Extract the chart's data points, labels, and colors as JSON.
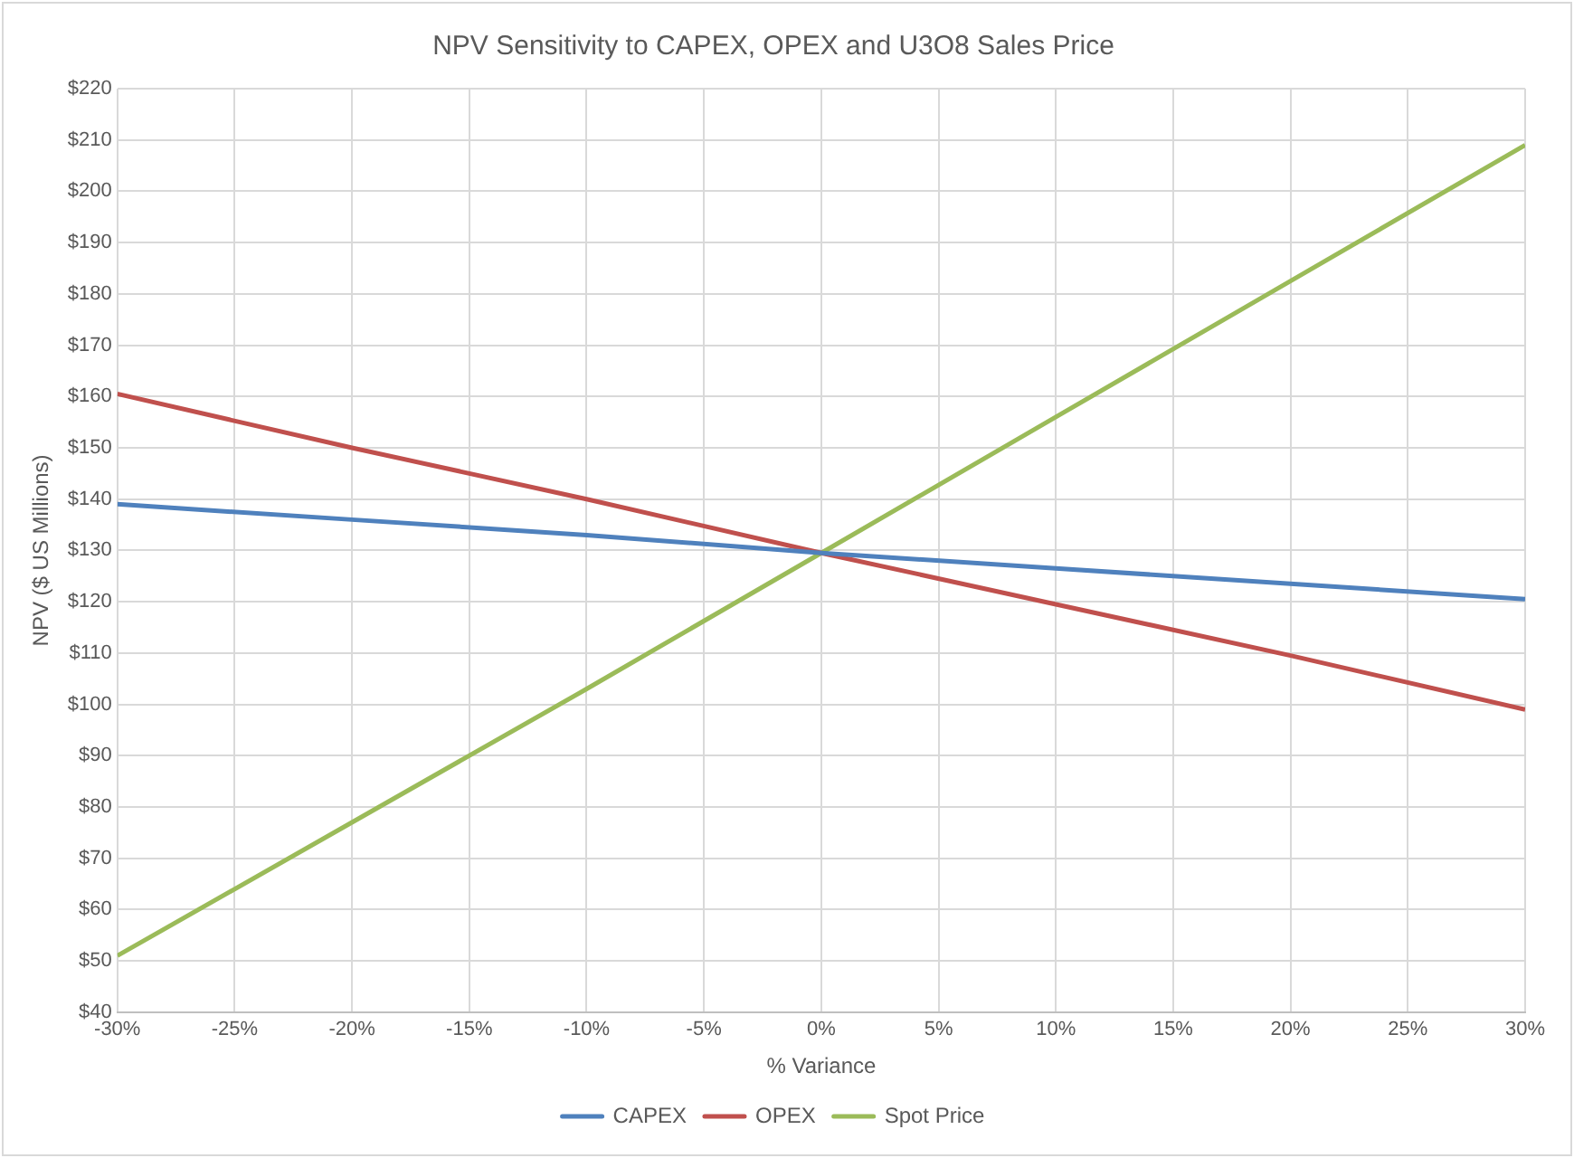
{
  "chart_data": {
    "type": "line",
    "title": "NPV Sensitivity to CAPEX, OPEX and U3O8 Sales Price",
    "xlabel": "% Variance",
    "ylabel": "NPV ($ US Millions)",
    "x": [
      -30,
      -20,
      -10,
      0,
      10,
      20,
      30
    ],
    "series": [
      {
        "name": "CAPEX",
        "color": "#4f81bd",
        "values": [
          139,
          136,
          133,
          129.5,
          126.5,
          123.5,
          120.5
        ]
      },
      {
        "name": "OPEX",
        "color": "#c0504d",
        "values": [
          160.5,
          150,
          140,
          129.5,
          119.5,
          109.5,
          99
        ]
      },
      {
        "name": "Spot Price",
        "color": "#9bbb59",
        "values": [
          51,
          77,
          103,
          129.5,
          156,
          182.5,
          209
        ]
      }
    ],
    "xlim": [
      -30,
      30
    ],
    "xticks": [
      {
        "value": -30,
        "label": "-30%"
      },
      {
        "value": -25,
        "label": "-25%"
      },
      {
        "value": -20,
        "label": "-20%"
      },
      {
        "value": -15,
        "label": "-15%"
      },
      {
        "value": -10,
        "label": "-10%"
      },
      {
        "value": -5,
        "label": "-5%"
      },
      {
        "value": 0,
        "label": "0%"
      },
      {
        "value": 5,
        "label": "5%"
      },
      {
        "value": 10,
        "label": "10%"
      },
      {
        "value": 15,
        "label": "15%"
      },
      {
        "value": 20,
        "label": "20%"
      },
      {
        "value": 25,
        "label": "25%"
      },
      {
        "value": 30,
        "label": "30%"
      }
    ],
    "ylim": [
      40,
      220
    ],
    "yticks": [
      {
        "value": 40,
        "label": "$40"
      },
      {
        "value": 50,
        "label": "$50"
      },
      {
        "value": 60,
        "label": "$60"
      },
      {
        "value": 70,
        "label": "$70"
      },
      {
        "value": 80,
        "label": "$80"
      },
      {
        "value": 90,
        "label": "$90"
      },
      {
        "value": 100,
        "label": "$100"
      },
      {
        "value": 110,
        "label": "$110"
      },
      {
        "value": 120,
        "label": "$120"
      },
      {
        "value": 130,
        "label": "$130"
      },
      {
        "value": 140,
        "label": "$140"
      },
      {
        "value": 150,
        "label": "$150"
      },
      {
        "value": 160,
        "label": "$160"
      },
      {
        "value": 170,
        "label": "$170"
      },
      {
        "value": 180,
        "label": "$180"
      },
      {
        "value": 190,
        "label": "$190"
      },
      {
        "value": 200,
        "label": "$200"
      },
      {
        "value": 210,
        "label": "$210"
      },
      {
        "value": 220,
        "label": "$220"
      }
    ],
    "grid": true,
    "legend": "bottom",
    "marker": "none",
    "line_style": "solid"
  }
}
